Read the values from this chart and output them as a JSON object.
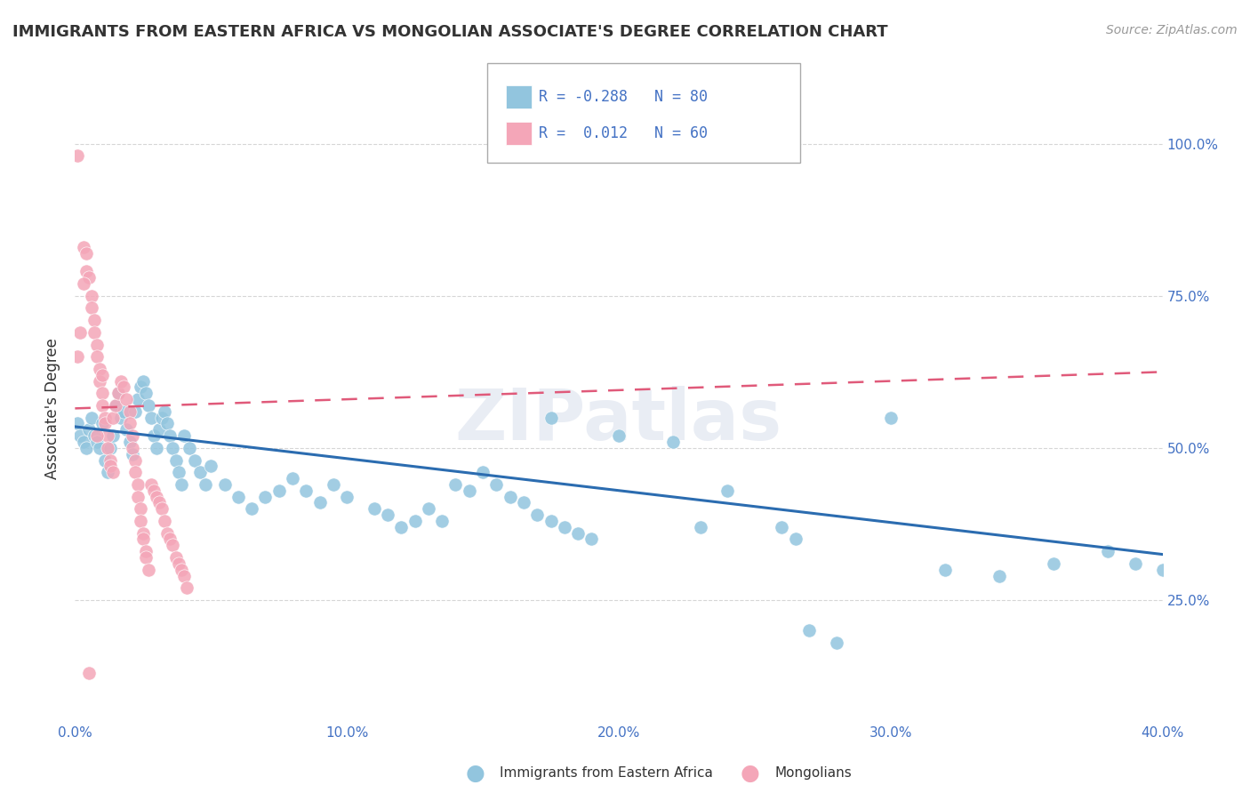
{
  "title": "IMMIGRANTS FROM EASTERN AFRICA VS MONGOLIAN ASSOCIATE'S DEGREE CORRELATION CHART",
  "source": "Source: ZipAtlas.com",
  "ylabel": "Associate's Degree",
  "legend_label_blue": "Immigrants from Eastern Africa",
  "legend_label_pink": "Mongolians",
  "blue_color": "#92c5de",
  "pink_color": "#f4a6b8",
  "blue_trend_color": "#2b6cb0",
  "pink_trend_color": "#e05a7a",
  "background_color": "#ffffff",
  "xlim": [
    0.0,
    0.4
  ],
  "ylim": [
    0.05,
    1.08
  ],
  "xtick_vals": [
    0.0,
    0.1,
    0.2,
    0.3,
    0.4
  ],
  "xtick_labels": [
    "0.0%",
    "10.0%",
    "20.0%",
    "30.0%",
    "40.0%"
  ],
  "ytick_vals": [
    0.25,
    0.5,
    0.75,
    1.0
  ],
  "ytick_labels": [
    "25.0%",
    "50.0%",
    "75.0%",
    "100.0%"
  ],
  "blue_trend": [
    0.0,
    0.4,
    0.535,
    0.325
  ],
  "pink_trend": [
    0.0,
    0.4,
    0.565,
    0.625
  ],
  "blue_points": [
    [
      0.001,
      0.54
    ],
    [
      0.002,
      0.52
    ],
    [
      0.003,
      0.51
    ],
    [
      0.004,
      0.5
    ],
    [
      0.005,
      0.53
    ],
    [
      0.006,
      0.55
    ],
    [
      0.007,
      0.52
    ],
    [
      0.008,
      0.51
    ],
    [
      0.009,
      0.5
    ],
    [
      0.01,
      0.54
    ],
    [
      0.011,
      0.48
    ],
    [
      0.012,
      0.46
    ],
    [
      0.013,
      0.5
    ],
    [
      0.014,
      0.52
    ],
    [
      0.015,
      0.57
    ],
    [
      0.016,
      0.59
    ],
    [
      0.017,
      0.55
    ],
    [
      0.018,
      0.56
    ],
    [
      0.019,
      0.53
    ],
    [
      0.02,
      0.51
    ],
    [
      0.021,
      0.49
    ],
    [
      0.022,
      0.56
    ],
    [
      0.023,
      0.58
    ],
    [
      0.024,
      0.6
    ],
    [
      0.025,
      0.61
    ],
    [
      0.026,
      0.59
    ],
    [
      0.027,
      0.57
    ],
    [
      0.028,
      0.55
    ],
    [
      0.029,
      0.52
    ],
    [
      0.03,
      0.5
    ],
    [
      0.031,
      0.53
    ],
    [
      0.032,
      0.55
    ],
    [
      0.033,
      0.56
    ],
    [
      0.034,
      0.54
    ],
    [
      0.035,
      0.52
    ],
    [
      0.036,
      0.5
    ],
    [
      0.037,
      0.48
    ],
    [
      0.038,
      0.46
    ],
    [
      0.039,
      0.44
    ],
    [
      0.04,
      0.52
    ],
    [
      0.042,
      0.5
    ],
    [
      0.044,
      0.48
    ],
    [
      0.046,
      0.46
    ],
    [
      0.048,
      0.44
    ],
    [
      0.05,
      0.47
    ],
    [
      0.055,
      0.44
    ],
    [
      0.06,
      0.42
    ],
    [
      0.065,
      0.4
    ],
    [
      0.07,
      0.42
    ],
    [
      0.075,
      0.43
    ],
    [
      0.08,
      0.45
    ],
    [
      0.085,
      0.43
    ],
    [
      0.09,
      0.41
    ],
    [
      0.095,
      0.44
    ],
    [
      0.1,
      0.42
    ],
    [
      0.11,
      0.4
    ],
    [
      0.115,
      0.39
    ],
    [
      0.12,
      0.37
    ],
    [
      0.125,
      0.38
    ],
    [
      0.13,
      0.4
    ],
    [
      0.135,
      0.38
    ],
    [
      0.14,
      0.44
    ],
    [
      0.145,
      0.43
    ],
    [
      0.15,
      0.46
    ],
    [
      0.155,
      0.44
    ],
    [
      0.16,
      0.42
    ],
    [
      0.165,
      0.41
    ],
    [
      0.17,
      0.39
    ],
    [
      0.175,
      0.38
    ],
    [
      0.18,
      0.37
    ],
    [
      0.185,
      0.36
    ],
    [
      0.19,
      0.35
    ],
    [
      0.2,
      0.52
    ],
    [
      0.22,
      0.51
    ],
    [
      0.23,
      0.37
    ],
    [
      0.24,
      0.43
    ],
    [
      0.26,
      0.37
    ],
    [
      0.265,
      0.35
    ],
    [
      0.27,
      0.2
    ],
    [
      0.28,
      0.18
    ],
    [
      0.3,
      0.55
    ],
    [
      0.32,
      0.3
    ],
    [
      0.34,
      0.29
    ],
    [
      0.36,
      0.31
    ],
    [
      0.38,
      0.33
    ],
    [
      0.39,
      0.31
    ],
    [
      0.4,
      0.3
    ],
    [
      0.175,
      0.55
    ]
  ],
  "pink_points": [
    [
      0.001,
      0.98
    ],
    [
      0.003,
      0.83
    ],
    [
      0.004,
      0.82
    ],
    [
      0.004,
      0.79
    ],
    [
      0.005,
      0.78
    ],
    [
      0.006,
      0.75
    ],
    [
      0.006,
      0.73
    ],
    [
      0.007,
      0.71
    ],
    [
      0.007,
      0.69
    ],
    [
      0.008,
      0.67
    ],
    [
      0.008,
      0.65
    ],
    [
      0.009,
      0.63
    ],
    [
      0.009,
      0.61
    ],
    [
      0.01,
      0.59
    ],
    [
      0.01,
      0.57
    ],
    [
      0.011,
      0.55
    ],
    [
      0.011,
      0.54
    ],
    [
      0.012,
      0.52
    ],
    [
      0.012,
      0.5
    ],
    [
      0.013,
      0.48
    ],
    [
      0.013,
      0.47
    ],
    [
      0.014,
      0.46
    ],
    [
      0.014,
      0.55
    ],
    [
      0.015,
      0.57
    ],
    [
      0.016,
      0.59
    ],
    [
      0.017,
      0.61
    ],
    [
      0.018,
      0.6
    ],
    [
      0.019,
      0.58
    ],
    [
      0.02,
      0.56
    ],
    [
      0.02,
      0.54
    ],
    [
      0.021,
      0.52
    ],
    [
      0.021,
      0.5
    ],
    [
      0.022,
      0.48
    ],
    [
      0.022,
      0.46
    ],
    [
      0.023,
      0.44
    ],
    [
      0.023,
      0.42
    ],
    [
      0.024,
      0.4
    ],
    [
      0.024,
      0.38
    ],
    [
      0.025,
      0.36
    ],
    [
      0.025,
      0.35
    ],
    [
      0.026,
      0.33
    ],
    [
      0.026,
      0.32
    ],
    [
      0.027,
      0.3
    ],
    [
      0.028,
      0.44
    ],
    [
      0.029,
      0.43
    ],
    [
      0.03,
      0.42
    ],
    [
      0.031,
      0.41
    ],
    [
      0.032,
      0.4
    ],
    [
      0.033,
      0.38
    ],
    [
      0.034,
      0.36
    ],
    [
      0.035,
      0.35
    ],
    [
      0.036,
      0.34
    ],
    [
      0.037,
      0.32
    ],
    [
      0.038,
      0.31
    ],
    [
      0.039,
      0.3
    ],
    [
      0.04,
      0.29
    ],
    [
      0.041,
      0.27
    ],
    [
      0.005,
      0.13
    ],
    [
      0.002,
      0.69
    ],
    [
      0.003,
      0.77
    ],
    [
      0.001,
      0.65
    ],
    [
      0.008,
      0.52
    ],
    [
      0.01,
      0.62
    ]
  ]
}
